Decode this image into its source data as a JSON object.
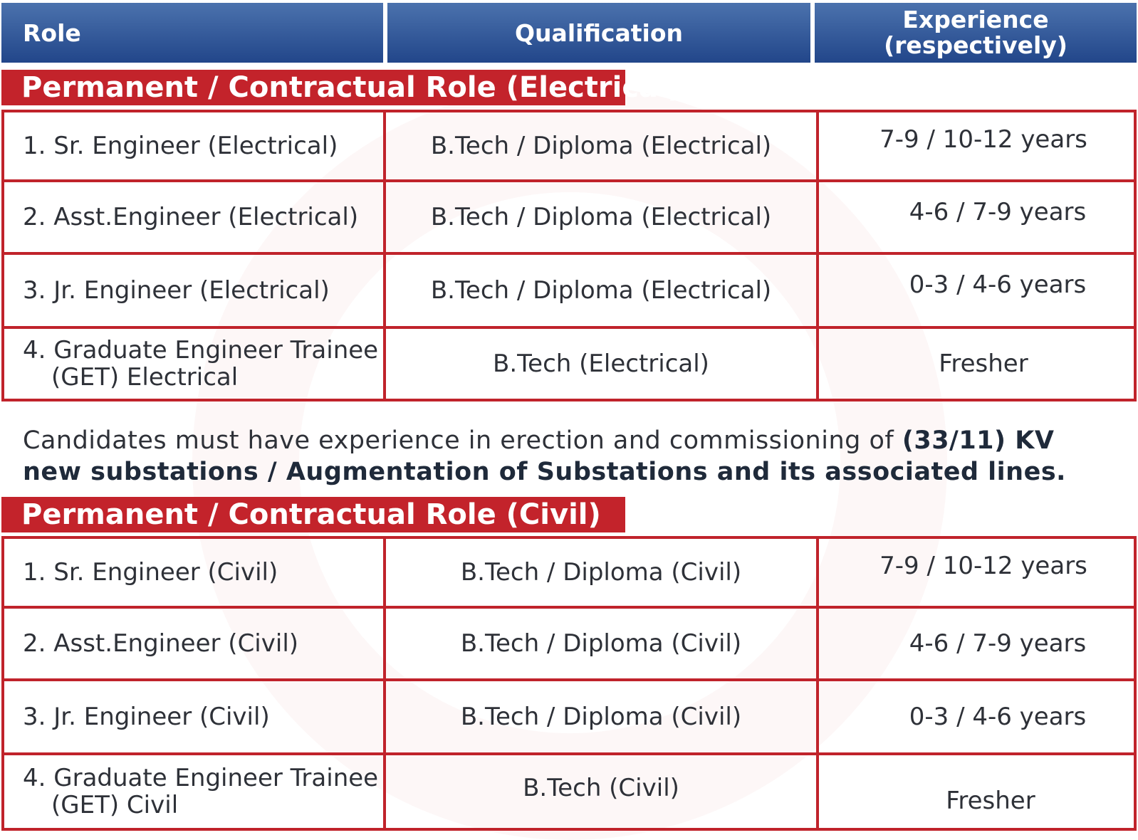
{
  "header": {
    "role": "Role",
    "qualification": "Qualification",
    "experience_line1": "Experience",
    "experience_line2": "(respectively)"
  },
  "sections": {
    "electrical": {
      "title": "Permanent / Contractual Role (Electrical)",
      "rows": [
        {
          "role": "1. Sr. Engineer (Electrical)",
          "qualification": "B.Tech / Diploma  (Electrical)",
          "experience": "7-9 / 10-12 years"
        },
        {
          "role": "2. Asst.Engineer (Electrical)",
          "qualification": "B.Tech / Diploma  (Electrical)",
          "experience": "4-6 / 7-9 years"
        },
        {
          "role": "3. Jr. Engineer (Electrical)",
          "qualification": "B.Tech / Diploma  (Electrical)",
          "experience": "0-3 / 4-6 years"
        },
        {
          "role_line1": "4. Graduate Engineer Trainee",
          "role_line2": "(GET) Electrical",
          "qualification": "B.Tech (Electrical)",
          "experience": "Fresher"
        }
      ]
    },
    "note": {
      "text_plain": "Candidates must have experience in erection and commissioning of ",
      "text_bold": "(33/11) KV new substations / Augmentation of Substations and its associated lines."
    },
    "civil": {
      "title": "Permanent / Contractual Role (Civil)",
      "rows": [
        {
          "role": "1. Sr. Engineer (Civil)",
          "qualification": "B.Tech / Diploma  (Civil)",
          "experience": "7-9 / 10-12 years"
        },
        {
          "role": "2. Asst.Engineer (Civil)",
          "qualification": "B.Tech / Diploma  (Civil)",
          "experience": "4-6 / 7-9 years"
        },
        {
          "role": "3. Jr. Engineer (Civil)",
          "qualification": "B.Tech / Diploma (Civil)",
          "experience": "0-3 / 4-6 years"
        },
        {
          "role_line1": "4. Graduate Engineer Trainee",
          "role_line2": "(GET) Civil",
          "qualification": "B.Tech (Civil)",
          "experience": "Fresher"
        }
      ]
    }
  }
}
